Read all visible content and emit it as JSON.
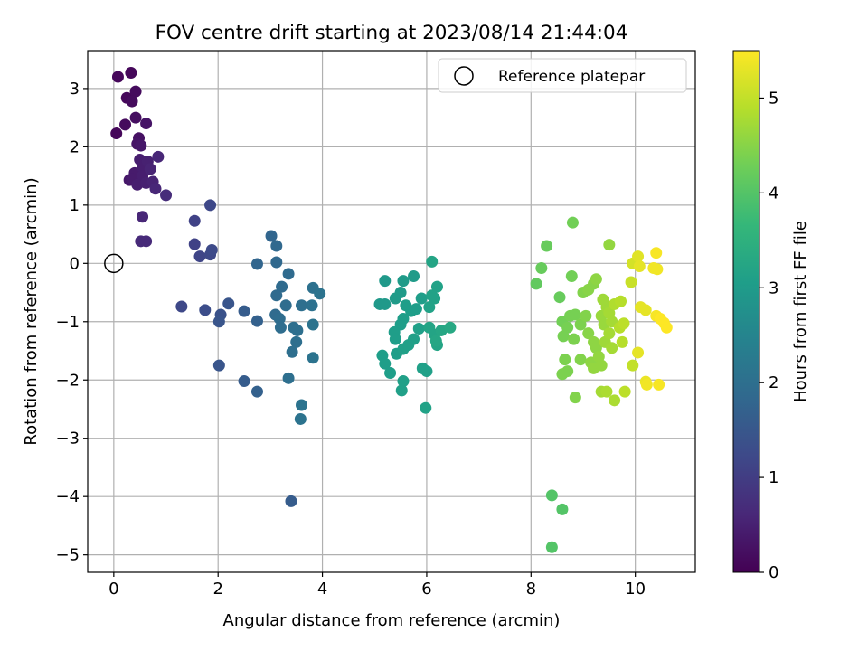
{
  "chart_data": {
    "type": "scatter",
    "title": "FOV centre drift starting at 2023/08/14 21:44:04",
    "xlabel": "Angular distance from reference (arcmin)",
    "ylabel": "Rotation from reference (arcmin)",
    "xlim": [
      -0.5,
      11.15
    ],
    "ylim": [
      -5.3,
      3.65
    ],
    "xticks": [
      0,
      2,
      4,
      6,
      8,
      10
    ],
    "yticks": [
      -5,
      -4,
      -3,
      -2,
      -1,
      0,
      1,
      2,
      3
    ],
    "grid": true,
    "legend": {
      "placement": "top-right",
      "entries": [
        "Reference platepar"
      ]
    },
    "reference_point": {
      "x": 0,
      "y": 0,
      "label": "Reference platepar"
    },
    "colorbar": {
      "label": "Hours from first FF file",
      "colormap": "viridis",
      "range": [
        0,
        5.5
      ],
      "ticks": [
        0,
        1,
        2,
        3,
        4,
        5
      ]
    },
    "points": [
      {
        "x": 0.08,
        "y": 3.2,
        "h": 0.1
      },
      {
        "x": 0.33,
        "y": 3.27,
        "h": 0.1
      },
      {
        "x": 0.25,
        "y": 2.84,
        "h": 0.1
      },
      {
        "x": 0.42,
        "y": 2.95,
        "h": 0.15
      },
      {
        "x": 0.35,
        "y": 2.78,
        "h": 0.15
      },
      {
        "x": 0.05,
        "y": 2.23,
        "h": 0.1
      },
      {
        "x": 0.22,
        "y": 2.38,
        "h": 0.15
      },
      {
        "x": 0.42,
        "y": 2.5,
        "h": 0.2
      },
      {
        "x": 0.62,
        "y": 2.4,
        "h": 0.3
      },
      {
        "x": 0.48,
        "y": 2.15,
        "h": 0.25
      },
      {
        "x": 0.45,
        "y": 2.05,
        "h": 0.3
      },
      {
        "x": 0.52,
        "y": 2.02,
        "h": 0.35
      },
      {
        "x": 0.5,
        "y": 1.78,
        "h": 0.45
      },
      {
        "x": 0.65,
        "y": 1.75,
        "h": 0.5
      },
      {
        "x": 0.85,
        "y": 1.83,
        "h": 0.6
      },
      {
        "x": 0.55,
        "y": 1.65,
        "h": 0.45
      },
      {
        "x": 0.7,
        "y": 1.62,
        "h": 0.55
      },
      {
        "x": 0.4,
        "y": 1.55,
        "h": 0.4
      },
      {
        "x": 0.35,
        "y": 1.45,
        "h": 0.4
      },
      {
        "x": 0.55,
        "y": 1.5,
        "h": 0.45
      },
      {
        "x": 0.3,
        "y": 1.43,
        "h": 0.35
      },
      {
        "x": 0.45,
        "y": 1.35,
        "h": 0.45
      },
      {
        "x": 0.62,
        "y": 1.38,
        "h": 0.5
      },
      {
        "x": 0.75,
        "y": 1.4,
        "h": 0.55
      },
      {
        "x": 0.8,
        "y": 1.28,
        "h": 0.6
      },
      {
        "x": 1.0,
        "y": 1.17,
        "h": 0.7
      },
      {
        "x": 0.55,
        "y": 0.8,
        "h": 0.6
      },
      {
        "x": 0.52,
        "y": 0.38,
        "h": 0.65
      },
      {
        "x": 0.62,
        "y": 0.38,
        "h": 0.65
      },
      {
        "x": 1.55,
        "y": 0.73,
        "h": 1.1
      },
      {
        "x": 1.85,
        "y": 1.0,
        "h": 1.2
      },
      {
        "x": 1.55,
        "y": 0.33,
        "h": 1.1
      },
      {
        "x": 1.65,
        "y": 0.12,
        "h": 1.15
      },
      {
        "x": 1.85,
        "y": 0.15,
        "h": 1.2
      },
      {
        "x": 1.88,
        "y": 0.23,
        "h": 1.25
      },
      {
        "x": 1.3,
        "y": -0.74,
        "h": 1.2
      },
      {
        "x": 1.75,
        "y": -0.8,
        "h": 1.3
      },
      {
        "x": 2.05,
        "y": -0.88,
        "h": 1.4
      },
      {
        "x": 2.2,
        "y": -0.69,
        "h": 1.45
      },
      {
        "x": 2.02,
        "y": -1.0,
        "h": 1.45
      },
      {
        "x": 2.02,
        "y": -1.75,
        "h": 1.45
      },
      {
        "x": 2.5,
        "y": -0.82,
        "h": 1.6
      },
      {
        "x": 2.5,
        "y": -2.02,
        "h": 1.6
      },
      {
        "x": 2.75,
        "y": -0.99,
        "h": 1.7
      },
      {
        "x": 2.75,
        "y": -2.2,
        "h": 1.7
      },
      {
        "x": 2.75,
        "y": -0.01,
        "h": 1.8
      },
      {
        "x": 3.02,
        "y": 0.47,
        "h": 1.8
      },
      {
        "x": 3.12,
        "y": 0.3,
        "h": 1.85
      },
      {
        "x": 3.12,
        "y": 0.02,
        "h": 1.85
      },
      {
        "x": 3.35,
        "y": -0.18,
        "h": 1.9
      },
      {
        "x": 3.22,
        "y": -0.4,
        "h": 1.9
      },
      {
        "x": 3.12,
        "y": -0.55,
        "h": 1.9
      },
      {
        "x": 3.3,
        "y": -0.72,
        "h": 1.95
      },
      {
        "x": 3.1,
        "y": -0.88,
        "h": 1.9
      },
      {
        "x": 3.18,
        "y": -0.95,
        "h": 1.95
      },
      {
        "x": 3.2,
        "y": -1.1,
        "h": 1.95
      },
      {
        "x": 3.45,
        "y": -1.1,
        "h": 2.0
      },
      {
        "x": 3.52,
        "y": -1.15,
        "h": 2.0
      },
      {
        "x": 3.5,
        "y": -1.35,
        "h": 2.0
      },
      {
        "x": 3.42,
        "y": -1.52,
        "h": 2.0
      },
      {
        "x": 3.6,
        "y": -0.72,
        "h": 2.0
      },
      {
        "x": 3.8,
        "y": -0.72,
        "h": 2.05
      },
      {
        "x": 3.82,
        "y": -0.42,
        "h": 2.05
      },
      {
        "x": 3.95,
        "y": -0.52,
        "h": 2.1
      },
      {
        "x": 3.82,
        "y": -1.05,
        "h": 2.1
      },
      {
        "x": 3.82,
        "y": -1.62,
        "h": 2.1
      },
      {
        "x": 3.35,
        "y": -1.97,
        "h": 2.0
      },
      {
        "x": 3.6,
        "y": -2.43,
        "h": 2.1
      },
      {
        "x": 3.58,
        "y": -2.67,
        "h": 2.1
      },
      {
        "x": 3.4,
        "y": -4.08,
        "h": 1.6
      },
      {
        "x": 5.2,
        "y": -0.3,
        "h": 2.95
      },
      {
        "x": 5.1,
        "y": -0.7,
        "h": 2.95
      },
      {
        "x": 5.2,
        "y": -0.7,
        "h": 2.95
      },
      {
        "x": 5.4,
        "y": -0.6,
        "h": 3.0
      },
      {
        "x": 5.5,
        "y": -0.5,
        "h": 3.0
      },
      {
        "x": 5.55,
        "y": -0.3,
        "h": 3.0
      },
      {
        "x": 5.75,
        "y": -0.22,
        "h": 3.0
      },
      {
        "x": 5.6,
        "y": -0.72,
        "h": 3.05
      },
      {
        "x": 5.7,
        "y": -0.82,
        "h": 3.05
      },
      {
        "x": 5.8,
        "y": -0.78,
        "h": 3.05
      },
      {
        "x": 5.9,
        "y": -0.6,
        "h": 3.05
      },
      {
        "x": 5.55,
        "y": -0.95,
        "h": 3.05
      },
      {
        "x": 5.5,
        "y": -1.05,
        "h": 3.05
      },
      {
        "x": 5.38,
        "y": -1.18,
        "h": 3.05
      },
      {
        "x": 5.4,
        "y": -1.3,
        "h": 3.05
      },
      {
        "x": 5.15,
        "y": -1.58,
        "h": 3.05
      },
      {
        "x": 5.2,
        "y": -1.72,
        "h": 3.05
      },
      {
        "x": 5.3,
        "y": -1.88,
        "h": 3.05
      },
      {
        "x": 5.42,
        "y": -1.55,
        "h": 3.05
      },
      {
        "x": 5.55,
        "y": -1.47,
        "h": 3.1
      },
      {
        "x": 5.65,
        "y": -1.4,
        "h": 3.1
      },
      {
        "x": 5.75,
        "y": -1.3,
        "h": 3.1
      },
      {
        "x": 5.55,
        "y": -2.02,
        "h": 3.1
      },
      {
        "x": 5.52,
        "y": -2.18,
        "h": 3.1
      },
      {
        "x": 5.92,
        "y": -1.8,
        "h": 3.1
      },
      {
        "x": 6.0,
        "y": -1.85,
        "h": 3.1
      },
      {
        "x": 5.85,
        "y": -1.12,
        "h": 3.1
      },
      {
        "x": 5.98,
        "y": -2.48,
        "h": 3.15
      },
      {
        "x": 6.05,
        "y": -0.75,
        "h": 3.15
      },
      {
        "x": 6.1,
        "y": -0.55,
        "h": 3.15
      },
      {
        "x": 6.2,
        "y": -0.4,
        "h": 3.15
      },
      {
        "x": 6.15,
        "y": -0.6,
        "h": 3.15
      },
      {
        "x": 6.1,
        "y": 0.03,
        "h": 3.2
      },
      {
        "x": 6.05,
        "y": -1.1,
        "h": 3.2
      },
      {
        "x": 6.15,
        "y": -1.22,
        "h": 3.2
      },
      {
        "x": 6.2,
        "y": -1.4,
        "h": 3.2
      },
      {
        "x": 6.18,
        "y": -1.33,
        "h": 3.25
      },
      {
        "x": 6.28,
        "y": -1.15,
        "h": 3.25
      },
      {
        "x": 6.45,
        "y": -1.1,
        "h": 3.3
      },
      {
        "x": 8.2,
        "y": -0.08,
        "h": 4.2
      },
      {
        "x": 8.1,
        "y": -0.35,
        "h": 4.15
      },
      {
        "x": 8.3,
        "y": 0.3,
        "h": 4.2
      },
      {
        "x": 8.8,
        "y": 0.7,
        "h": 4.3
      },
      {
        "x": 8.4,
        "y": -3.98,
        "h": 4.0
      },
      {
        "x": 8.6,
        "y": -4.22,
        "h": 4.0
      },
      {
        "x": 8.4,
        "y": -4.87,
        "h": 4.0
      },
      {
        "x": 8.55,
        "y": -0.58,
        "h": 4.2
      },
      {
        "x": 8.78,
        "y": -0.22,
        "h": 4.3
      },
      {
        "x": 8.6,
        "y": -1.0,
        "h": 4.3
      },
      {
        "x": 8.75,
        "y": -0.9,
        "h": 4.35
      },
      {
        "x": 8.85,
        "y": -0.88,
        "h": 4.35
      },
      {
        "x": 8.95,
        "y": -1.05,
        "h": 4.4
      },
      {
        "x": 8.7,
        "y": -1.1,
        "h": 4.35
      },
      {
        "x": 8.62,
        "y": -1.25,
        "h": 4.35
      },
      {
        "x": 8.82,
        "y": -1.3,
        "h": 4.4
      },
      {
        "x": 8.65,
        "y": -1.65,
        "h": 4.4
      },
      {
        "x": 8.6,
        "y": -1.9,
        "h": 4.4
      },
      {
        "x": 8.7,
        "y": -1.85,
        "h": 4.4
      },
      {
        "x": 8.85,
        "y": -2.3,
        "h": 4.45
      },
      {
        "x": 8.95,
        "y": -1.65,
        "h": 4.45
      },
      {
        "x": 9.05,
        "y": -0.9,
        "h": 4.45
      },
      {
        "x": 9.0,
        "y": -0.5,
        "h": 4.45
      },
      {
        "x": 9.1,
        "y": -0.45,
        "h": 4.5
      },
      {
        "x": 9.2,
        "y": -0.35,
        "h": 4.5
      },
      {
        "x": 9.25,
        "y": -0.27,
        "h": 4.55
      },
      {
        "x": 9.5,
        "y": 0.32,
        "h": 4.6
      },
      {
        "x": 9.1,
        "y": -1.2,
        "h": 4.5
      },
      {
        "x": 9.2,
        "y": -1.35,
        "h": 4.55
      },
      {
        "x": 9.25,
        "y": -1.45,
        "h": 4.55
      },
      {
        "x": 9.3,
        "y": -1.6,
        "h": 4.6
      },
      {
        "x": 9.15,
        "y": -1.7,
        "h": 4.55
      },
      {
        "x": 9.2,
        "y": -1.8,
        "h": 4.6
      },
      {
        "x": 9.35,
        "y": -1.75,
        "h": 4.6
      },
      {
        "x": 9.4,
        "y": -1.05,
        "h": 4.65
      },
      {
        "x": 9.35,
        "y": -0.9,
        "h": 4.65
      },
      {
        "x": 9.45,
        "y": -0.75,
        "h": 4.7
      },
      {
        "x": 9.38,
        "y": -0.62,
        "h": 4.7
      },
      {
        "x": 9.5,
        "y": -0.85,
        "h": 4.75
      },
      {
        "x": 9.55,
        "y": -1.0,
        "h": 4.75
      },
      {
        "x": 9.5,
        "y": -1.2,
        "h": 4.75
      },
      {
        "x": 9.42,
        "y": -1.35,
        "h": 4.7
      },
      {
        "x": 9.55,
        "y": -1.45,
        "h": 4.75
      },
      {
        "x": 9.35,
        "y": -2.2,
        "h": 4.75
      },
      {
        "x": 9.45,
        "y": -2.2,
        "h": 4.8
      },
      {
        "x": 9.6,
        "y": -2.35,
        "h": 4.8
      },
      {
        "x": 9.6,
        "y": -0.7,
        "h": 4.85
      },
      {
        "x": 9.72,
        "y": -0.65,
        "h": 4.9
      },
      {
        "x": 9.7,
        "y": -1.1,
        "h": 4.9
      },
      {
        "x": 9.75,
        "y": -1.35,
        "h": 4.9
      },
      {
        "x": 9.8,
        "y": -2.2,
        "h": 4.95
      },
      {
        "x": 9.78,
        "y": -1.03,
        "h": 4.95
      },
      {
        "x": 9.95,
        "y": -1.75,
        "h": 5.0
      },
      {
        "x": 9.92,
        "y": -0.32,
        "h": 5.05
      },
      {
        "x": 9.95,
        "y": 0.0,
        "h": 5.15
      },
      {
        "x": 10.05,
        "y": 0.12,
        "h": 5.25
      },
      {
        "x": 10.08,
        "y": -0.05,
        "h": 5.3
      },
      {
        "x": 10.2,
        "y": -0.8,
        "h": 5.3
      },
      {
        "x": 10.1,
        "y": -0.75,
        "h": 5.3
      },
      {
        "x": 10.05,
        "y": -1.53,
        "h": 5.3
      },
      {
        "x": 10.2,
        "y": -2.03,
        "h": 5.35
      },
      {
        "x": 10.22,
        "y": -2.08,
        "h": 5.4
      },
      {
        "x": 10.35,
        "y": -0.08,
        "h": 5.4
      },
      {
        "x": 10.42,
        "y": -0.1,
        "h": 5.4
      },
      {
        "x": 10.4,
        "y": 0.18,
        "h": 5.45
      },
      {
        "x": 10.4,
        "y": -0.9,
        "h": 5.45
      },
      {
        "x": 10.48,
        "y": -0.95,
        "h": 5.5
      },
      {
        "x": 10.55,
        "y": -1.02,
        "h": 5.5
      },
      {
        "x": 10.6,
        "y": -1.1,
        "h": 5.5
      },
      {
        "x": 10.45,
        "y": -2.08,
        "h": 5.45
      }
    ]
  }
}
